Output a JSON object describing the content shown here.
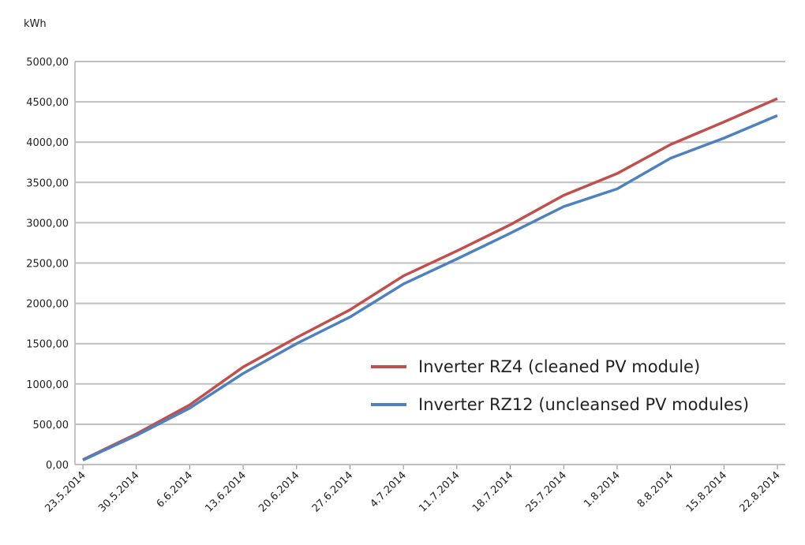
{
  "chart_data": {
    "type": "line",
    "y_axis_label": "kWh",
    "x": [
      "23.5.2014",
      "30.5.2014",
      "6.6.2014",
      "13.6.2014",
      "20.6.2014",
      "27.6.2014",
      "4.7.2014",
      "11.7.2014",
      "18.7.2014",
      "25.7.2014",
      "1.8.2014",
      "8.8.2014",
      "15.8.2014",
      "22.8.2014"
    ],
    "series": [
      {
        "name": "Inverter RZ4 (cleaned PV module)",
        "color": "#c0504d",
        "values": [
          60,
          380,
          740,
          1210,
          1575,
          1920,
          2340,
          2650,
          2975,
          3340,
          3610,
          3970,
          4250,
          4540
        ]
      },
      {
        "name": "Inverter RZ12 (uncleansed PV modules)",
        "color": "#4f81bd",
        "values": [
          55,
          360,
          700,
          1130,
          1500,
          1830,
          2240,
          2550,
          2870,
          3200,
          3420,
          3800,
          4050,
          4330
        ]
      }
    ],
    "ylim": [
      0,
      5000
    ],
    "yticks": [
      {
        "value": 0,
        "label": "0,00"
      },
      {
        "value": 500,
        "label": "500,00"
      },
      {
        "value": 1000,
        "label": "1000,00"
      },
      {
        "value": 1500,
        "label": "1500,00"
      },
      {
        "value": 2000,
        "label": "2000,00"
      },
      {
        "value": 2500,
        "label": "2500,00"
      },
      {
        "value": 3000,
        "label": "3000,00"
      },
      {
        "value": 3500,
        "label": "3500,00"
      },
      {
        "value": 4000,
        "label": "4000,00"
      },
      {
        "value": 4500,
        "label": "4500,00"
      },
      {
        "value": 5000,
        "label": "5000,00"
      }
    ],
    "grid": true,
    "legend": "lower right"
  }
}
